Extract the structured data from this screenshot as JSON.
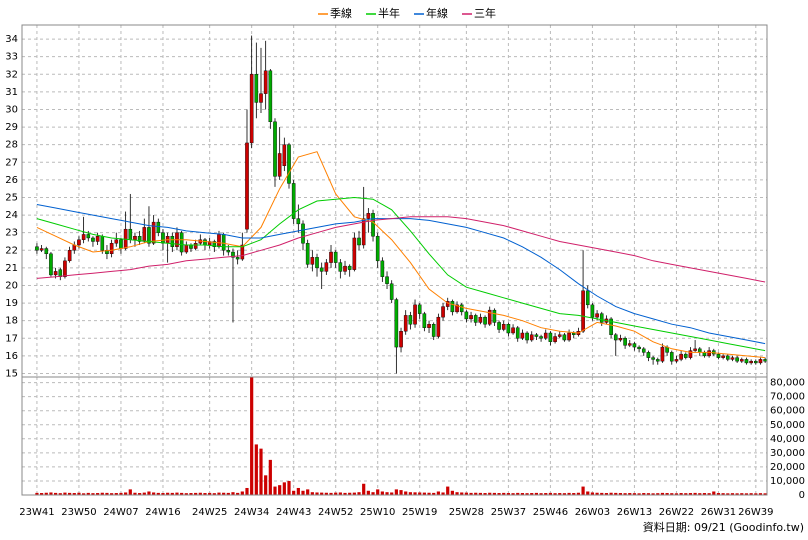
{
  "chart_data": {
    "type": "candlestick",
    "legend": [
      {
        "name": "季線",
        "color": "#ff8000"
      },
      {
        "name": "半年",
        "color": "#00cc00"
      },
      {
        "name": "年線",
        "color": "#0060d0"
      },
      {
        "name": "三年",
        "color": "#d0206a"
      }
    ],
    "up_color": "#cc0000",
    "down_color": "#00aa00",
    "volume_color": "#cc0000",
    "grid": true,
    "xlim": [
      -3.2,
      156.4
    ],
    "xticks": [
      {
        "value": 0,
        "label": "23W41"
      },
      {
        "value": 9,
        "label": "23W50"
      },
      {
        "value": 18,
        "label": "24W07"
      },
      {
        "value": 27,
        "label": "24W16"
      },
      {
        "value": 37,
        "label": "24W25"
      },
      {
        "value": 46,
        "label": "24W34"
      },
      {
        "value": 55,
        "label": "24W43"
      },
      {
        "value": 64,
        "label": "24W52"
      },
      {
        "value": 73,
        "label": "25W10"
      },
      {
        "value": 82,
        "label": "25W19"
      },
      {
        "value": 92,
        "label": "25W28"
      },
      {
        "value": 101,
        "label": "25W37"
      },
      {
        "value": 110,
        "label": "25W46"
      },
      {
        "value": 119,
        "label": "26W03"
      },
      {
        "value": 128,
        "label": "26W13"
      },
      {
        "value": 137,
        "label": "26W22"
      },
      {
        "value": 146,
        "label": "26W31"
      },
      {
        "value": 154,
        "label": "26W39"
      }
    ],
    "ylim": [
      14.8,
      34.8
    ],
    "yticks": [
      15,
      16,
      17,
      18,
      19,
      20,
      21,
      22,
      23,
      24,
      25,
      26,
      27,
      28,
      29,
      30,
      31,
      32,
      33,
      34
    ],
    "vlim": [
      0,
      84000
    ],
    "vticks": [
      0,
      {
        "value": 10000,
        "label": "10,000"
      },
      {
        "value": 20000,
        "label": "20,000"
      },
      {
        "value": 30000,
        "label": "30,000"
      },
      {
        "value": 40000,
        "label": "40,000"
      },
      {
        "value": 50000,
        "label": "50,000"
      },
      {
        "value": 60000,
        "label": "60,000"
      },
      {
        "value": 70000,
        "label": "70,000"
      },
      {
        "value": 80000,
        "label": "80,000"
      }
    ],
    "ohlc": [
      [
        22.2,
        22.4,
        21.8,
        22.0
      ],
      [
        22.0,
        22.3,
        21.9,
        22.1
      ],
      [
        22.1,
        22.2,
        21.5,
        21.8
      ],
      [
        21.8,
        21.9,
        20.5,
        20.6
      ],
      [
        20.6,
        21.0,
        20.4,
        20.8
      ],
      [
        20.9,
        21.0,
        20.3,
        20.5
      ],
      [
        20.5,
        21.6,
        20.4,
        21.4
      ],
      [
        21.4,
        22.2,
        21.3,
        22.0
      ],
      [
        22.0,
        22.5,
        21.8,
        22.3
      ],
      [
        22.3,
        22.8,
        22.1,
        22.6
      ],
      [
        22.6,
        23.9,
        22.4,
        22.9
      ],
      [
        22.9,
        23.1,
        22.5,
        22.7
      ],
      [
        22.7,
        22.8,
        22.2,
        22.5
      ],
      [
        22.5,
        23.0,
        22.3,
        22.8
      ],
      [
        22.8,
        22.9,
        21.8,
        22.0
      ],
      [
        22.0,
        22.3,
        21.5,
        21.8
      ],
      [
        21.8,
        22.6,
        21.6,
        22.4
      ],
      [
        22.4,
        23.0,
        22.2,
        22.6
      ],
      [
        22.6,
        22.7,
        21.8,
        22.1
      ],
      [
        22.1,
        24.2,
        22.0,
        23.2
      ],
      [
        23.2,
        25.2,
        22.4,
        22.6
      ],
      [
        22.6,
        23.0,
        22.2,
        22.8
      ],
      [
        22.8,
        23.1,
        22.3,
        22.5
      ],
      [
        22.5,
        23.8,
        22.4,
        23.3
      ],
      [
        23.3,
        24.5,
        22.2,
        22.4
      ],
      [
        22.4,
        24.0,
        22.3,
        23.6
      ],
      [
        23.6,
        23.8,
        22.8,
        23.0
      ],
      [
        23.0,
        23.2,
        22.0,
        22.4
      ],
      [
        22.4,
        23.0,
        21.3,
        22.8
      ],
      [
        22.8,
        23.0,
        21.9,
        22.2
      ],
      [
        22.2,
        23.3,
        22.0,
        23.0
      ],
      [
        23.0,
        23.1,
        21.7,
        21.9
      ],
      [
        21.9,
        22.5,
        21.8,
        22.3
      ],
      [
        22.3,
        22.4,
        21.9,
        22.1
      ],
      [
        22.1,
        22.6,
        22.0,
        22.4
      ],
      [
        22.4,
        22.9,
        22.3,
        22.6
      ],
      [
        22.6,
        22.7,
        22.0,
        22.3
      ],
      [
        22.3,
        22.7,
        22.1,
        22.5
      ],
      [
        22.5,
        22.6,
        21.9,
        22.2
      ],
      [
        22.2,
        23.1,
        22.1,
        22.9
      ],
      [
        22.9,
        23.0,
        21.7,
        22.0
      ],
      [
        22.0,
        22.3,
        21.7,
        21.9
      ],
      [
        21.9,
        22.1,
        17.9,
        21.6
      ],
      [
        21.6,
        22.0,
        21.2,
        21.5
      ],
      [
        21.5,
        23.0,
        21.4,
        22.3
      ],
      [
        23.2,
        30.0,
        23.0,
        28.1
      ],
      [
        28.1,
        34.2,
        27.8,
        32.0
      ],
      [
        32.0,
        33.8,
        29.5,
        30.4
      ],
      [
        30.4,
        33.5,
        29.8,
        30.9
      ],
      [
        30.9,
        33.9,
        30.0,
        32.2
      ],
      [
        32.2,
        32.3,
        28.9,
        29.3
      ],
      [
        29.3,
        29.5,
        25.6,
        26.2
      ],
      [
        26.2,
        29.0,
        26.0,
        27.5
      ],
      [
        26.8,
        28.4,
        26.5,
        28.0
      ],
      [
        28.0,
        28.1,
        25.5,
        25.8
      ],
      [
        25.8,
        26.0,
        23.5,
        23.8
      ],
      [
        23.8,
        24.6,
        23.0,
        23.5
      ],
      [
        23.5,
        23.7,
        22.0,
        22.4
      ],
      [
        22.4,
        22.6,
        21.0,
        21.2
      ],
      [
        21.2,
        22.0,
        20.8,
        21.6
      ],
      [
        21.6,
        21.8,
        20.5,
        21.0
      ],
      [
        21.0,
        21.3,
        19.8,
        20.8
      ],
      [
        20.8,
        21.5,
        20.6,
        21.3
      ],
      [
        21.3,
        22.3,
        21.0,
        21.9
      ],
      [
        21.9,
        22.0,
        21.0,
        21.3
      ],
      [
        21.3,
        21.5,
        20.4,
        20.8
      ],
      [
        20.8,
        21.4,
        20.6,
        21.1
      ],
      [
        21.1,
        21.2,
        20.5,
        20.9
      ],
      [
        20.9,
        23.0,
        20.8,
        22.7
      ],
      [
        22.7,
        23.1,
        22.0,
        22.3
      ],
      [
        22.3,
        25.6,
        22.1,
        23.8
      ],
      [
        23.8,
        24.4,
        23.0,
        24.1
      ],
      [
        24.1,
        24.3,
        22.5,
        22.8
      ],
      [
        22.8,
        23.0,
        21.0,
        21.4
      ],
      [
        21.4,
        21.6,
        20.2,
        20.5
      ],
      [
        20.5,
        20.8,
        19.8,
        20.1
      ],
      [
        20.1,
        20.3,
        19.0,
        19.2
      ],
      [
        19.2,
        19.3,
        15.0,
        16.5
      ],
      [
        16.5,
        17.6,
        16.2,
        17.4
      ],
      [
        17.4,
        18.6,
        17.2,
        18.3
      ],
      [
        18.3,
        18.5,
        17.5,
        17.8
      ],
      [
        17.8,
        19.2,
        17.6,
        18.9
      ],
      [
        18.9,
        19.0,
        18.1,
        18.4
      ],
      [
        18.4,
        18.5,
        17.4,
        17.6
      ],
      [
        17.6,
        18.0,
        17.3,
        17.8
      ],
      [
        17.8,
        17.9,
        16.9,
        17.1
      ],
      [
        17.1,
        18.4,
        17.0,
        18.2
      ],
      [
        18.2,
        19.0,
        18.0,
        18.8
      ],
      [
        18.8,
        19.3,
        18.6,
        19.1
      ],
      [
        19.1,
        19.2,
        18.3,
        18.5
      ],
      [
        18.5,
        19.1,
        18.4,
        18.9
      ],
      [
        18.9,
        19.0,
        18.3,
        18.5
      ],
      [
        18.5,
        18.6,
        17.9,
        18.1
      ],
      [
        18.1,
        18.5,
        17.9,
        18.3
      ],
      [
        18.3,
        18.4,
        17.7,
        17.9
      ],
      [
        17.9,
        18.4,
        17.8,
        18.2
      ],
      [
        18.2,
        18.3,
        17.6,
        17.8
      ],
      [
        17.8,
        18.8,
        17.7,
        18.6
      ],
      [
        18.6,
        18.7,
        17.7,
        17.9
      ],
      [
        17.9,
        18.0,
        17.3,
        17.5
      ],
      [
        17.5,
        18.0,
        17.4,
        17.8
      ],
      [
        17.8,
        17.9,
        17.1,
        17.3
      ],
      [
        17.3,
        17.8,
        17.2,
        17.6
      ],
      [
        17.6,
        17.7,
        16.8,
        17.0
      ],
      [
        17.0,
        17.5,
        16.9,
        17.3
      ],
      [
        17.3,
        17.4,
        16.7,
        16.9
      ],
      [
        16.9,
        17.4,
        16.8,
        17.2
      ],
      [
        17.2,
        17.3,
        16.9,
        17.1
      ],
      [
        17.1,
        17.2,
        16.8,
        17.0
      ],
      [
        17.0,
        17.5,
        16.9,
        17.3
      ],
      [
        17.3,
        17.4,
        16.6,
        16.8
      ],
      [
        16.8,
        17.3,
        16.7,
        17.1
      ],
      [
        17.1,
        17.4,
        17.0,
        17.2
      ],
      [
        17.2,
        17.3,
        16.8,
        16.9
      ],
      [
        16.9,
        17.5,
        16.8,
        17.3
      ],
      [
        17.3,
        17.4,
        17.0,
        17.2
      ],
      [
        17.2,
        17.6,
        17.1,
        17.4
      ],
      [
        17.4,
        22.0,
        17.3,
        19.7
      ],
      [
        19.7,
        20.0,
        18.7,
        18.9
      ],
      [
        18.9,
        19.0,
        18.0,
        18.2
      ],
      [
        18.2,
        18.6,
        18.0,
        18.4
      ],
      [
        18.4,
        18.5,
        17.7,
        17.9
      ],
      [
        17.9,
        18.3,
        17.8,
        18.1
      ],
      [
        18.1,
        18.2,
        17.0,
        17.2
      ],
      [
        17.2,
        17.3,
        16.0,
        16.9
      ],
      [
        16.9,
        17.2,
        16.8,
        17.0
      ],
      [
        17.0,
        17.1,
        16.4,
        16.6
      ],
      [
        16.6,
        16.9,
        16.5,
        16.7
      ],
      [
        16.7,
        16.8,
        16.3,
        16.5
      ],
      [
        16.5,
        16.6,
        16.2,
        16.4
      ],
      [
        16.4,
        16.5,
        16.0,
        16.2
      ],
      [
        16.2,
        16.3,
        15.7,
        15.9
      ],
      [
        15.9,
        16.0,
        15.5,
        15.8
      ],
      [
        15.8,
        15.9,
        15.5,
        15.7
      ],
      [
        15.7,
        16.7,
        15.6,
        16.5
      ],
      [
        16.5,
        16.6,
        16.0,
        16.2
      ],
      [
        16.2,
        16.3,
        15.5,
        15.7
      ],
      [
        15.7,
        16.0,
        15.6,
        15.8
      ],
      [
        15.8,
        16.3,
        15.7,
        16.1
      ],
      [
        16.1,
        16.2,
        15.8,
        15.9
      ],
      [
        15.9,
        16.5,
        15.8,
        16.3
      ],
      [
        16.3,
        16.9,
        16.2,
        16.4
      ],
      [
        16.4,
        16.5,
        16.0,
        16.2
      ],
      [
        16.2,
        16.3,
        15.9,
        16.0
      ],
      [
        16.0,
        16.5,
        15.9,
        16.3
      ],
      [
        16.3,
        16.4,
        16.0,
        16.1
      ],
      [
        16.1,
        16.2,
        15.8,
        15.9
      ],
      [
        15.9,
        16.1,
        15.8,
        16.0
      ],
      [
        16.0,
        16.1,
        15.7,
        15.8
      ],
      [
        15.8,
        16.0,
        15.7,
        15.9
      ],
      [
        15.9,
        16.0,
        15.6,
        15.7
      ],
      [
        15.7,
        15.9,
        15.6,
        15.8
      ],
      [
        15.8,
        15.9,
        15.5,
        15.6
      ],
      [
        15.6,
        15.8,
        15.5,
        15.7
      ],
      [
        15.7,
        15.8,
        15.5,
        15.6
      ],
      [
        15.6,
        15.9,
        15.5,
        15.8
      ],
      [
        15.8,
        15.9,
        15.6,
        15.7
      ]
    ],
    "volume": [
      1500,
      1400,
      1600,
      1800,
      1500,
      1300,
      1700,
      1500,
      1400,
      1600,
      1200,
      1500,
      1300,
      1400,
      1600,
      1500,
      1300,
      1400,
      1500,
      1800,
      4000,
      1600,
      1400,
      1700,
      2500,
      1800,
      1500,
      1400,
      1600,
      1500,
      1700,
      1500,
      1300,
      1400,
      1500,
      1600,
      1400,
      1500,
      1300,
      1700,
      1600,
      1500,
      2000,
      1500,
      2500,
      5000,
      84000,
      36000,
      33000,
      14000,
      25000,
      6000,
      7000,
      9000,
      10000,
      3000,
      5000,
      3000,
      4000,
      2000,
      1800,
      1700,
      1600,
      1500,
      1700,
      1800,
      1500,
      1600,
      1700,
      2000,
      8000,
      3000,
      2000,
      4000,
      2500,
      2000,
      1800,
      4000,
      3500,
      2500,
      2000,
      1900,
      1800,
      1700,
      1600,
      1500,
      2500,
      1800,
      6000,
      3000,
      2000,
      1800,
      1700,
      1500,
      1600,
      1500,
      1400,
      1600,
      1500,
      1400,
      1500,
      1400,
      1300,
      1500,
      1400,
      1300,
      1400,
      1500,
      1300,
      1400,
      1500,
      1300,
      1400,
      1300,
      1500,
      1400,
      1600,
      6000,
      2500,
      1800,
      1600,
      1500,
      1400,
      1600,
      1500,
      1400,
      1300,
      1400,
      1300,
      1200,
      1400,
      1300,
      1200,
      1300,
      1500,
      1400,
      1300,
      1200,
      1400,
      1300,
      1400,
      1500,
      1300,
      1400,
      1300,
      2500,
      1400,
      1300,
      1200,
      1300,
      1200,
      1300,
      1200,
      1300,
      1200,
      1300,
      1200
    ],
    "ma_x": [
      0,
      4,
      8,
      12,
      16,
      20,
      24,
      28,
      32,
      36,
      40,
      44,
      48,
      52,
      56,
      60,
      64,
      68,
      72,
      76,
      80,
      84,
      88,
      92,
      96,
      100,
      104,
      108,
      112,
      116,
      120,
      124,
      128,
      132,
      136,
      140,
      144,
      148,
      152,
      156
    ],
    "series": [
      {
        "name": "季線",
        "color": "#ff8000",
        "values": [
          23.3,
          22.8,
          22.3,
          21.9,
          22.0,
          22.2,
          22.5,
          22.6,
          22.6,
          22.5,
          22.4,
          22.2,
          23.3,
          25.5,
          27.3,
          27.6,
          25.2,
          23.9,
          23.6,
          22.6,
          21.3,
          19.8,
          19.0,
          18.7,
          18.5,
          18.3,
          18.0,
          17.6,
          17.4,
          17.3,
          17.9,
          17.7,
          17.4,
          16.8,
          16.4,
          16.2,
          16.2,
          16.1,
          16.0,
          15.9
        ]
      },
      {
        "name": "半年",
        "color": "#00cc00",
        "values": [
          23.8,
          23.5,
          23.2,
          22.9,
          22.7,
          22.6,
          22.5,
          22.4,
          22.3,
          22.3,
          22.2,
          22.2,
          22.6,
          23.5,
          24.3,
          24.8,
          24.9,
          25.0,
          24.9,
          24.3,
          23.1,
          21.8,
          20.6,
          19.9,
          19.6,
          19.3,
          19.0,
          18.7,
          18.4,
          18.3,
          18.1,
          17.9,
          17.7,
          17.5,
          17.3,
          17.1,
          16.9,
          16.7,
          16.5,
          16.3
        ]
      },
      {
        "name": "年線",
        "color": "#0060d0",
        "values": [
          24.6,
          24.4,
          24.2,
          24.0,
          23.8,
          23.6,
          23.4,
          23.3,
          23.1,
          23.0,
          22.9,
          22.7,
          22.7,
          22.9,
          23.1,
          23.3,
          23.5,
          23.6,
          23.8,
          23.8,
          23.8,
          23.7,
          23.5,
          23.3,
          23.0,
          22.7,
          22.2,
          21.6,
          20.9,
          20.1,
          19.4,
          18.8,
          18.4,
          18.1,
          17.8,
          17.6,
          17.3,
          17.1,
          16.9,
          16.7
        ]
      },
      {
        "name": "三年",
        "color": "#d0206a",
        "values": [
          20.4,
          20.5,
          20.6,
          20.7,
          20.8,
          20.9,
          21.1,
          21.2,
          21.4,
          21.5,
          21.6,
          21.7,
          22.0,
          22.3,
          22.7,
          23.0,
          23.3,
          23.5,
          23.7,
          23.8,
          23.9,
          23.9,
          23.9,
          23.8,
          23.6,
          23.4,
          23.1,
          22.8,
          22.5,
          22.3,
          22.1,
          21.9,
          21.7,
          21.4,
          21.2,
          21.0,
          20.8,
          20.6,
          20.4,
          20.2
        ]
      }
    ],
    "footnote": "資料日期: 09/21  (Goodinfo.tw)"
  }
}
